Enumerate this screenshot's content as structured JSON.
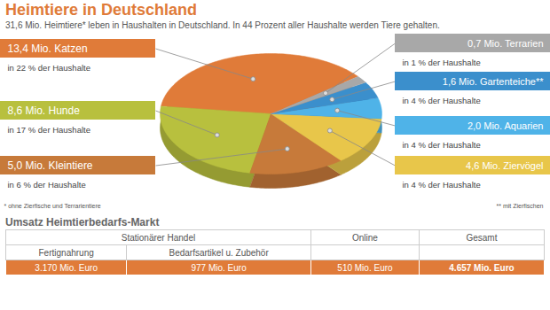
{
  "chart_data": {
    "type": "pie",
    "title": "Heimtiere in Deutschland",
    "subtitle": "31,6 Mio. Heimtiere* leben in Haushalten in Deutschland. In 44 Prozent aller Haushalte werden Tiere gehalten.",
    "categories": [
      "13,4 Mio. Katzen",
      "8,6 Mio. Hunde",
      "5,0 Mio. Kleintiere",
      "4,6 Mio. Ziervögel",
      "2,0 Mio. Aquarien",
      "1,6 Mio. Gartenteiche**",
      "0,7 Mio. Terrarien"
    ],
    "values": [
      13.4,
      8.6,
      5.0,
      4.6,
      2.0,
      1.6,
      0.7
    ],
    "colors": [
      "#e07b39",
      "#b8c03e",
      "#c77a3a",
      "#e8c64a",
      "#4fb3e8",
      "#3b8fcc",
      "#a8a8a8"
    ],
    "annotations": [
      "in 22 % der Haushalte",
      "in 17 % der Haushalte",
      "in 6 % der Haushalte",
      "in 4 % der Haushalte",
      "in 4 % der Haushalte",
      "in 4 % der Haushalte",
      "in 1 % der Haushalte"
    ],
    "footnotes": [
      "* ohne Zierfische und Terrarientiere",
      "** mit Zierfischen"
    ]
  },
  "table": {
    "title": "Umsatz Heimtierbedarfs-Markt",
    "groups": [
      {
        "label": "Stationärer Handel",
        "columns": [
          "Fertignahrung",
          "Bedarfsartikel u. Zubehör"
        ]
      },
      {
        "label": "Online",
        "columns": []
      },
      {
        "label": "Gesamt",
        "columns": []
      }
    ],
    "rows": [
      [
        "3.170 Mio. Euro",
        "977 Mio. Euro",
        "510 Mio. Euro",
        "4.657 Mio. Euro"
      ]
    ]
  }
}
